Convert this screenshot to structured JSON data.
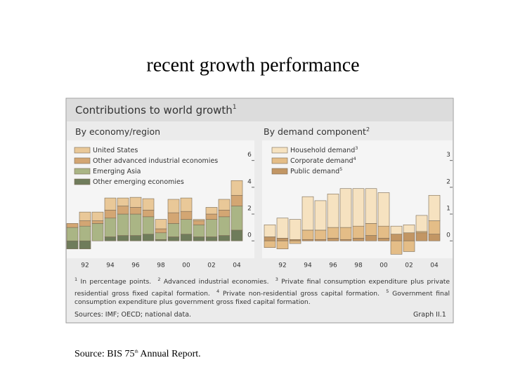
{
  "slide_title": "recent growth performance",
  "panel_title": {
    "text": "Contributions to world growth",
    "mark": "1"
  },
  "chart_data": [
    {
      "type": "bar",
      "stacked": true,
      "title": "By economy/region",
      "categories": [
        null,
        "92",
        null,
        "94",
        null,
        "96",
        null,
        "98",
        null,
        "00",
        null,
        "02",
        null,
        "04"
      ],
      "ylim": [
        -1.3,
        7.5
      ],
      "yticks": [
        0,
        2,
        4,
        6
      ],
      "series": [
        {
          "name": "United States",
          "color": "#e9c898",
          "values": [
            0.0,
            0.65,
            0.65,
            0.9,
            0.6,
            0.75,
            0.85,
            0.7,
            1.0,
            1.0,
            0.1,
            0.5,
            0.8,
            1.1
          ]
        },
        {
          "name": "Other advanced industrial economies",
          "color": "#d3a673",
          "values": [
            0.3,
            0.4,
            0.2,
            0.6,
            0.6,
            0.5,
            0.5,
            0.3,
            0.8,
            0.6,
            0.3,
            0.4,
            0.5,
            0.8
          ]
        },
        {
          "name": "Emerging Asia",
          "color": "#aab585",
          "values": [
            1.0,
            1.1,
            1.3,
            1.4,
            1.6,
            1.6,
            1.3,
            0.5,
            1.0,
            1.1,
            0.9,
            1.3,
            1.4,
            1.8
          ]
        },
        {
          "name": "Other emerging economies",
          "color": "#6f7c5b",
          "values": [
            -0.6,
            -0.6,
            0.0,
            0.3,
            0.4,
            0.4,
            0.5,
            0.1,
            0.3,
            0.5,
            0.3,
            0.3,
            0.4,
            0.8
          ]
        }
      ]
    },
    {
      "type": "bar",
      "stacked": true,
      "title": "By demand component",
      "title_mark": "2",
      "categories": [
        null,
        "92",
        null,
        "94",
        null,
        "96",
        null,
        "98",
        null,
        "00",
        null,
        "02",
        null,
        "04"
      ],
      "ylim": [
        -0.65,
        3.75
      ],
      "yticks": [
        0,
        1,
        2,
        3
      ],
      "series": [
        {
          "name": "Household demand",
          "mark": "3",
          "color": "#f6e2c0",
          "values": [
            0.45,
            0.75,
            0.75,
            1.25,
            1.1,
            1.25,
            1.45,
            1.4,
            1.3,
            1.25,
            0.3,
            0.3,
            0.6,
            0.95
          ]
        },
        {
          "name": "Corporate demand",
          "mark": "4",
          "color": "#e4bd87",
          "values": [
            -0.25,
            -0.3,
            -0.1,
            0.35,
            0.35,
            0.4,
            0.45,
            0.45,
            0.45,
            0.45,
            -0.5,
            -0.4,
            0.05,
            0.5
          ]
        },
        {
          "name": "Public demand",
          "mark": "5",
          "color": "#c29664",
          "values": [
            0.15,
            0.1,
            0.05,
            0.05,
            0.05,
            0.1,
            0.05,
            0.1,
            0.2,
            0.1,
            0.25,
            0.3,
            0.3,
            0.25
          ]
        }
      ]
    }
  ],
  "footnotes": [
    {
      "mark": "1",
      "text": "In percentage points."
    },
    {
      "mark": "2",
      "text": "Advanced industrial economies."
    },
    {
      "mark": "3",
      "text": "Private final consumption expenditure plus private residential gross fixed capital formation."
    },
    {
      "mark": "4",
      "text": "Private non-residential gross capital formation."
    },
    {
      "mark": "5",
      "text": "Government final consumption expenditure plus government gross fixed capital formation."
    }
  ],
  "sources": "Sources: IMF; OECD; national data.",
  "graph_id": "Graph II.1",
  "source": {
    "before": "Source: BIS 75",
    "sup": "th",
    "after": " Annual Report."
  }
}
